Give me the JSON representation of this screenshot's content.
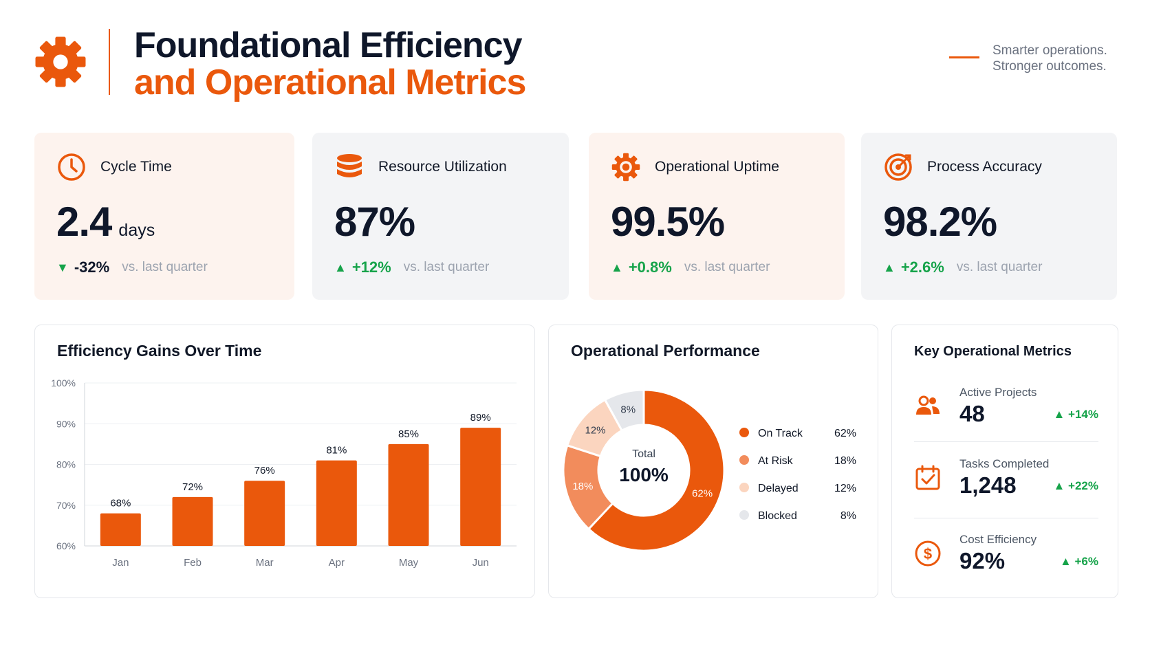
{
  "header": {
    "title_line1": "Foundational Efficiency",
    "title_line2": "and Operational Metrics",
    "tagline_line1": "Smarter operations.",
    "tagline_line2": "Stronger outcomes.",
    "logo_icon": "gear-icon"
  },
  "colors": {
    "accent": "#ea580c",
    "positive": "#16a34a",
    "warm_card": "#fdf3ee",
    "cool_card": "#f3f4f6"
  },
  "kpis": [
    {
      "title": "Cycle Time",
      "value": "2.4",
      "unit": "days",
      "delta": "-32%",
      "direction": "down",
      "compare": "vs. last quarter",
      "icon": "clock-icon"
    },
    {
      "title": "Resource Utilization",
      "value": "87%",
      "delta": "+12%",
      "direction": "up",
      "compare": "vs. last quarter",
      "icon": "database-icon"
    },
    {
      "title": "Operational Uptime",
      "value": "99.5%",
      "delta": "+0.8%",
      "direction": "up",
      "compare": "vs. last quarter",
      "icon": "gear-icon"
    },
    {
      "title": "Process Accuracy",
      "value": "98.2%",
      "delta": "+2.6%",
      "direction": "up",
      "compare": "vs. last quarter",
      "icon": "target-icon"
    }
  ],
  "panels": {
    "efficiency_title": "Efficiency Gains Over Time",
    "performance_title": "Operational Performance",
    "key_metrics_title": "Key Operational Metrics"
  },
  "chart_data": [
    {
      "type": "bar",
      "title": "Efficiency Gains Over Time",
      "categories": [
        "Jan",
        "Feb",
        "Mar",
        "Apr",
        "May",
        "Jun"
      ],
      "values": [
        68,
        72,
        76,
        81,
        85,
        89
      ],
      "value_labels": [
        "68%",
        "72%",
        "76%",
        "81%",
        "85%",
        "89%"
      ],
      "ylim": [
        60,
        100
      ],
      "yticks": [
        60,
        70,
        80,
        90,
        100
      ],
      "ytick_labels": [
        "60%",
        "70%",
        "80%",
        "90%",
        "100%"
      ],
      "grid": true,
      "color": "#ea580c"
    },
    {
      "type": "pie",
      "title": "Operational Performance",
      "center_label": "Total",
      "center_value": "100%",
      "legend_position": "right",
      "slices": [
        {
          "name": "On Track",
          "value": 62,
          "label": "62%",
          "color": "#ea580c"
        },
        {
          "name": "At Risk",
          "value": 18,
          "label": "18%",
          "color": "#f28c5c"
        },
        {
          "name": "Delayed",
          "value": 12,
          "label": "12%",
          "color": "#fbd5bf"
        },
        {
          "name": "Blocked",
          "value": 8,
          "label": "8%",
          "color": "#e5e7eb"
        }
      ]
    }
  ],
  "key_metrics": [
    {
      "label": "Active Projects",
      "value": "48",
      "delta": "▲ +14%",
      "icon": "users-icon"
    },
    {
      "label": "Tasks Completed",
      "value": "1,248",
      "delta": "▲ +22%",
      "icon": "calendar-check-icon"
    },
    {
      "label": "Cost Efficiency",
      "value": "92%",
      "delta": "▲ +6%",
      "icon": "dollar-icon"
    }
  ]
}
